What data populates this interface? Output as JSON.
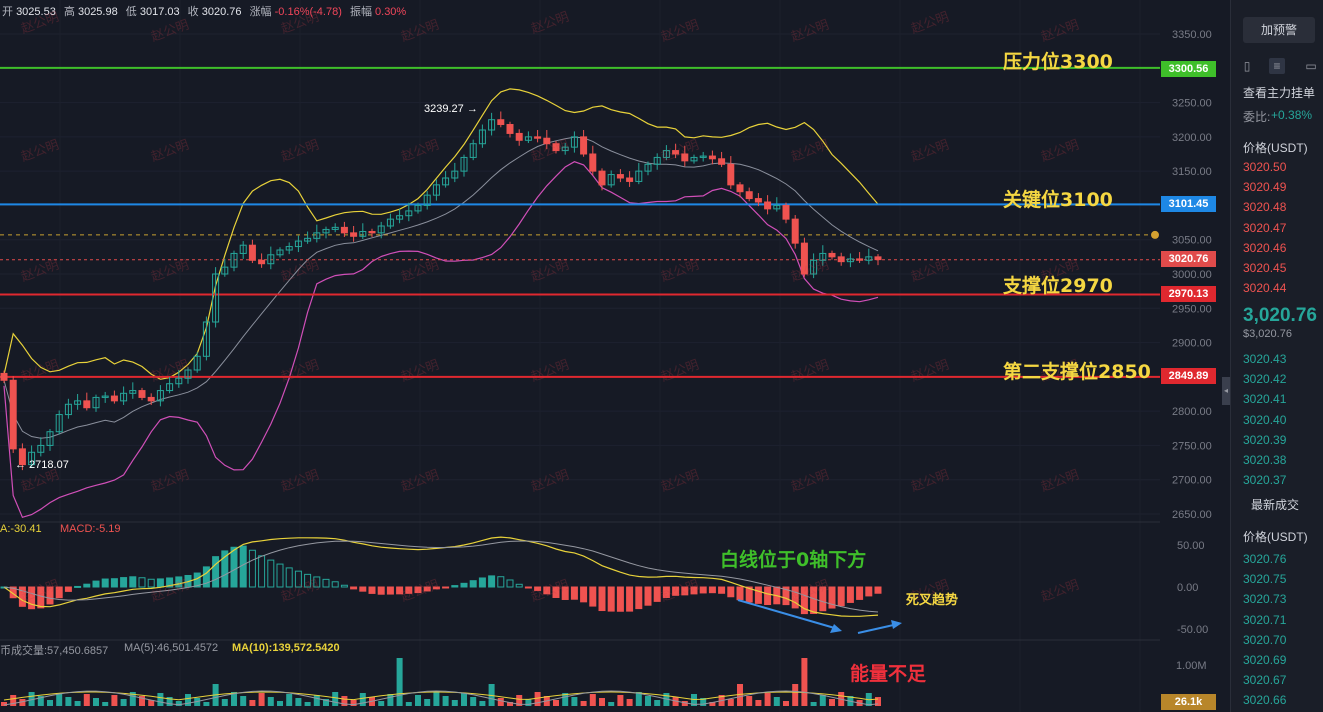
{
  "ohlc": {
    "open_label": "开",
    "open": "3025.53",
    "high_label": "高",
    "high": "3025.98",
    "low_label": "低",
    "low": "3017.03",
    "close_label": "收",
    "close": "3020.76",
    "change_label": "涨幅",
    "change": "-0.16%(-4.78)",
    "amp_label": "振幅",
    "amp": "0.30%"
  },
  "watermark": "赵公明",
  "levels": {
    "resistance": {
      "label": "压力位3300",
      "tag": "3300.56",
      "color": "#3fbf2a"
    },
    "key": {
      "label": "关键位3100",
      "tag": "3101.45",
      "color": "#1e88e5"
    },
    "support": {
      "label": "支撑位2970",
      "tag": "2970.13",
      "color": "#e0282f"
    },
    "support2": {
      "label": "第二支撑位2850",
      "tag": "2849.89",
      "color": "#e0282f"
    },
    "current": {
      "tag": "3020.76",
      "color": "#e04b4b"
    }
  },
  "markers": {
    "high": "3239.27 →",
    "low": "← 2718.07"
  },
  "macd": {
    "legend_a": "A:-30.41",
    "legend_macd": "MACD:-5.19",
    "note_white": "白线位于0轴下方",
    "note_dead": "死叉趋势"
  },
  "volume": {
    "legend_vol": "币成交量:57,450.6857",
    "legend_ma5": "MA(5):46,501.4572",
    "legend_ma10": "MA(10):139,572.5420",
    "note": "能量不足",
    "tag": "26.1k"
  },
  "sidebar": {
    "button": "加预警",
    "title": "查看主力挂单",
    "ratio_label": "委比:",
    "ratio_value": "+0.38%",
    "price_header": "价格(USDT)",
    "asks": [
      "3020.50",
      "3020.49",
      "3020.48",
      "3020.47",
      "3020.46",
      "3020.45",
      "3020.44"
    ],
    "last_price": "3,020.76",
    "last_price_sub": "$3,020.76",
    "bids": [
      "3020.43",
      "3020.42",
      "3020.41",
      "3020.40",
      "3020.39",
      "3020.38",
      "3020.37"
    ],
    "trades_title": "最新成交",
    "trades_header": "价格(USDT)",
    "trades": [
      "3020.76",
      "3020.75",
      "3020.73",
      "3020.71",
      "3020.70",
      "3020.69",
      "3020.67",
      "3020.66"
    ]
  },
  "chart_data": {
    "type": "candlestick",
    "price_axis_ticks": [
      3350,
      3300,
      3250,
      3200,
      3150,
      3100,
      3050,
      3000,
      2950,
      2900,
      2850,
      2800,
      2750,
      2700,
      2650
    ],
    "macd_axis_ticks": [
      "50.00",
      "0.00",
      "-50.00"
    ],
    "volume_axis_ticks": [
      "1.00M"
    ],
    "horizontal_levels": [
      3300.56,
      3101.45,
      3020.76,
      2970.13,
      2849.89
    ],
    "dashed_level": 3057,
    "high_marker": 3239.27,
    "low_marker": 2718.07,
    "colors": {
      "up": "#26a69a",
      "down": "#ef5350",
      "boll_upper": "#e8d23a",
      "boll_mid": "#8a8f9c",
      "boll_lower": "#d04fb8"
    },
    "closes": [
      2845,
      2745,
      2722,
      2740,
      2750,
      2770,
      2795,
      2810,
      2815,
      2805,
      2820,
      2822,
      2815,
      2826,
      2830,
      2820,
      2815,
      2830,
      2840,
      2848,
      2860,
      2880,
      2930,
      3000,
      3010,
      3030,
      3042,
      3020,
      3015,
      3028,
      3035,
      3040,
      3048,
      3052,
      3060,
      3065,
      3068,
      3060,
      3055,
      3062,
      3060,
      3070,
      3080,
      3085,
      3092,
      3100,
      3115,
      3130,
      3140,
      3150,
      3170,
      3190,
      3210,
      3225,
      3218,
      3205,
      3195,
      3200,
      3198,
      3190,
      3180,
      3185,
      3200,
      3175,
      3150,
      3130,
      3145,
      3140,
      3135,
      3150,
      3160,
      3170,
      3180,
      3175,
      3165,
      3170,
      3172,
      3168,
      3160,
      3130,
      3120,
      3110,
      3105,
      3095,
      3100,
      3080,
      3045,
      3000,
      3020,
      3030,
      3025,
      3018,
      3022,
      3020,
      3025,
      3021
    ]
  }
}
